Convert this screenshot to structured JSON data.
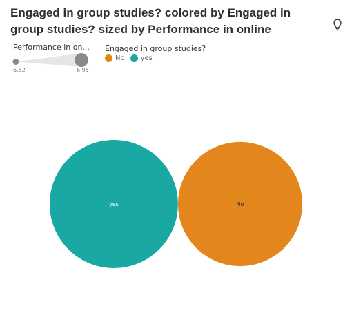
{
  "title": "Engaged in group studies? colored by Engaged in group studies? sized by Performance in online",
  "icons": {
    "insight": "lightbulb-icon"
  },
  "size_legend": {
    "title": "Performance in on...",
    "min_label": "6.52",
    "max_label": "6.95"
  },
  "color_legend": {
    "title": "Engaged in group studies?",
    "items": [
      {
        "label": "No",
        "color": "#e3861b"
      },
      {
        "label": "yes",
        "color": "#1aa8a5"
      }
    ]
  },
  "chart_data": {
    "type": "packed-bubble",
    "title": "Engaged in group studies? colored by Engaged in group studies? sized by Performance in online",
    "color_by": "Engaged in group studies?",
    "size_by": "Performance in online",
    "size_range": [
      6.52,
      6.95
    ],
    "points": [
      {
        "label": "yes",
        "color_value": "yes",
        "size_value": 6.95,
        "color": "#1aa8a5"
      },
      {
        "label": "No",
        "color_value": "No",
        "size_value": 6.52,
        "color": "#e3861b"
      }
    ]
  }
}
